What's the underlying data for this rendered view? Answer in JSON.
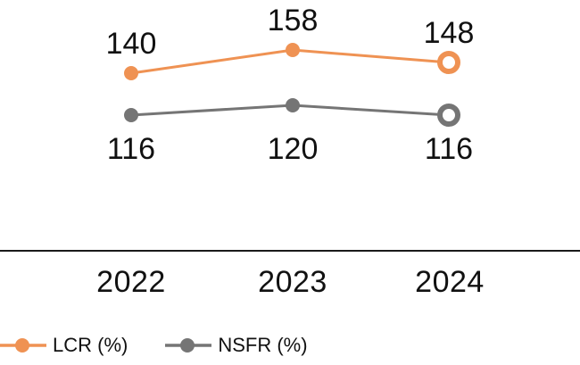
{
  "chart_data": {
    "type": "line",
    "categories": [
      "2022",
      "2023",
      "2024"
    ],
    "series": [
      {
        "name": "LCR (%)",
        "values": [
          140,
          158,
          148
        ],
        "color": "#EF9253",
        "marker": "filled-circle",
        "last_marker": "hollow-circle",
        "label_position": "above"
      },
      {
        "name": "NSFR (%)",
        "values": [
          116,
          120,
          116
        ],
        "color": "#757575",
        "marker": "filled-circle",
        "last_marker": "hollow-circle",
        "label_position": "below"
      }
    ],
    "title": "",
    "xlabel": "",
    "ylabel": "",
    "data_labels": true,
    "grid": false,
    "y_axis_shown": false,
    "x_axis_line_color": "#1A1A1A",
    "text_color": "#111111",
    "background_color": "#FFFFFF",
    "legend_position": "bottom-left"
  }
}
